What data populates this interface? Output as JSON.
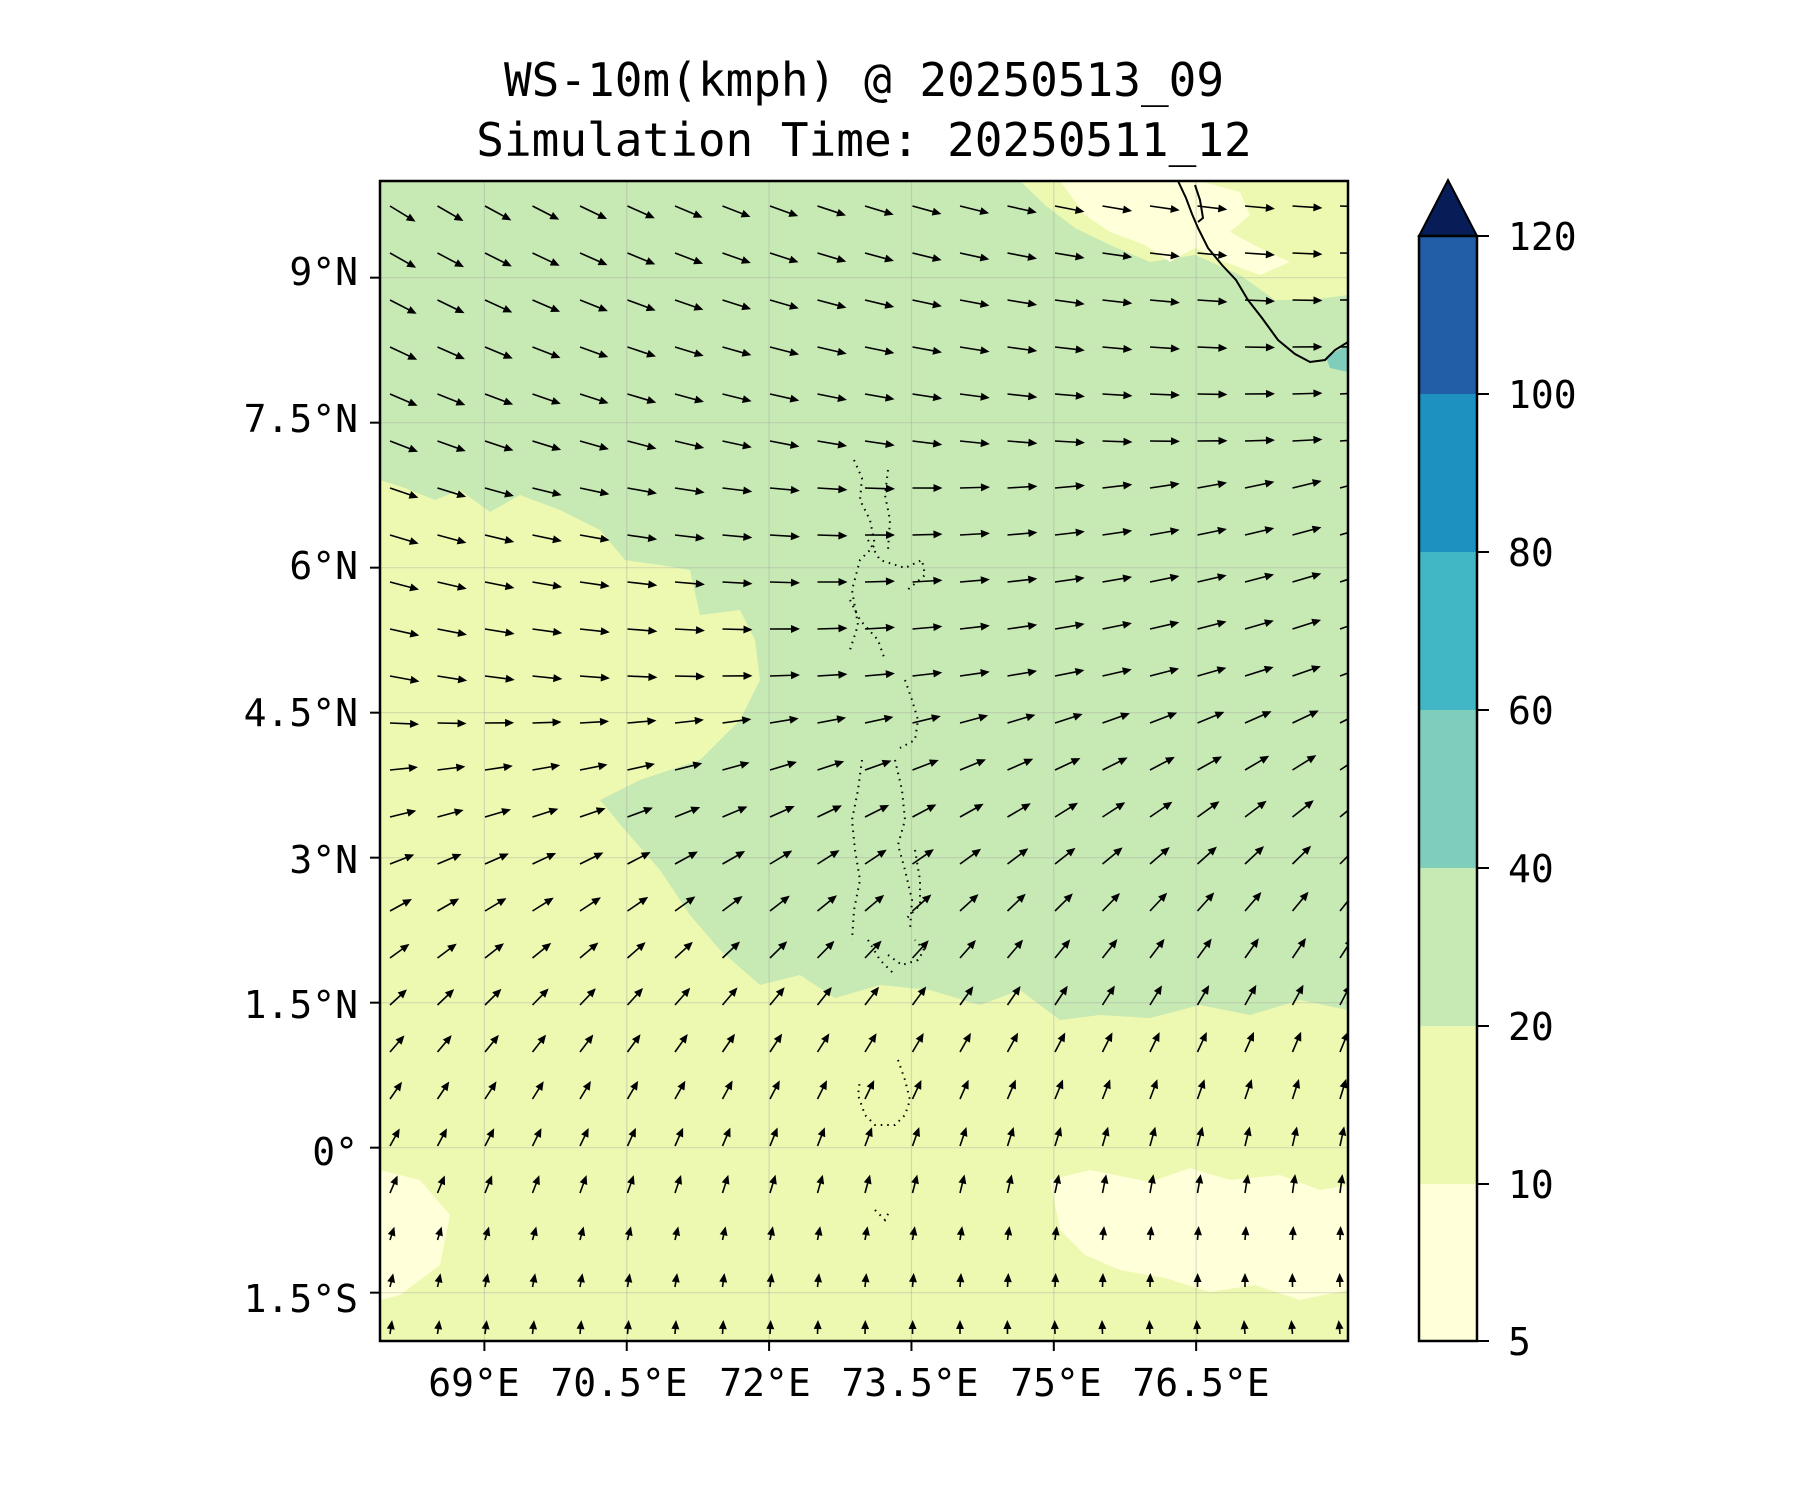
{
  "title": {
    "line1": "WS-10m(kmph) @ 20250513_09",
    "line2": "Simulation Time: 20250511_12"
  },
  "map": {
    "lon_range": [
      67.9,
      78.1
    ],
    "lat_range": [
      -2.0,
      10.0
    ],
    "lon_ticks": [
      69,
      70.5,
      72,
      73.5,
      75,
      76.5
    ],
    "lon_tick_labels": [
      "69°E",
      "70.5°E",
      "72°E",
      "73.5°E",
      "75°E",
      "76.5°E"
    ],
    "lat_ticks": [
      9,
      7.5,
      6,
      4.5,
      3,
      1.5,
      0,
      -1.5
    ],
    "lat_tick_labels": [
      "9°N",
      "7.5°N",
      "6°N",
      "4.5°N",
      "3°N",
      "1.5°N",
      "0°",
      "1.5°S"
    ],
    "gridlines": true,
    "arrow_color": "#000000",
    "coastline_color": "#000000"
  },
  "colorbar": {
    "levels": [
      5,
      10,
      20,
      40,
      60,
      80,
      100,
      120
    ],
    "tick_labels": [
      "5",
      "10",
      "20",
      "40",
      "60",
      "80",
      "100",
      "120"
    ],
    "colors": [
      "#ffffd9",
      "#edf8b1",
      "#c7e9b4",
      "#7fcdbb",
      "#41b6c4",
      "#1d91c0",
      "#225ea8",
      "#253494"
    ],
    "extend_color": "#081d58",
    "extend": "max"
  }
}
